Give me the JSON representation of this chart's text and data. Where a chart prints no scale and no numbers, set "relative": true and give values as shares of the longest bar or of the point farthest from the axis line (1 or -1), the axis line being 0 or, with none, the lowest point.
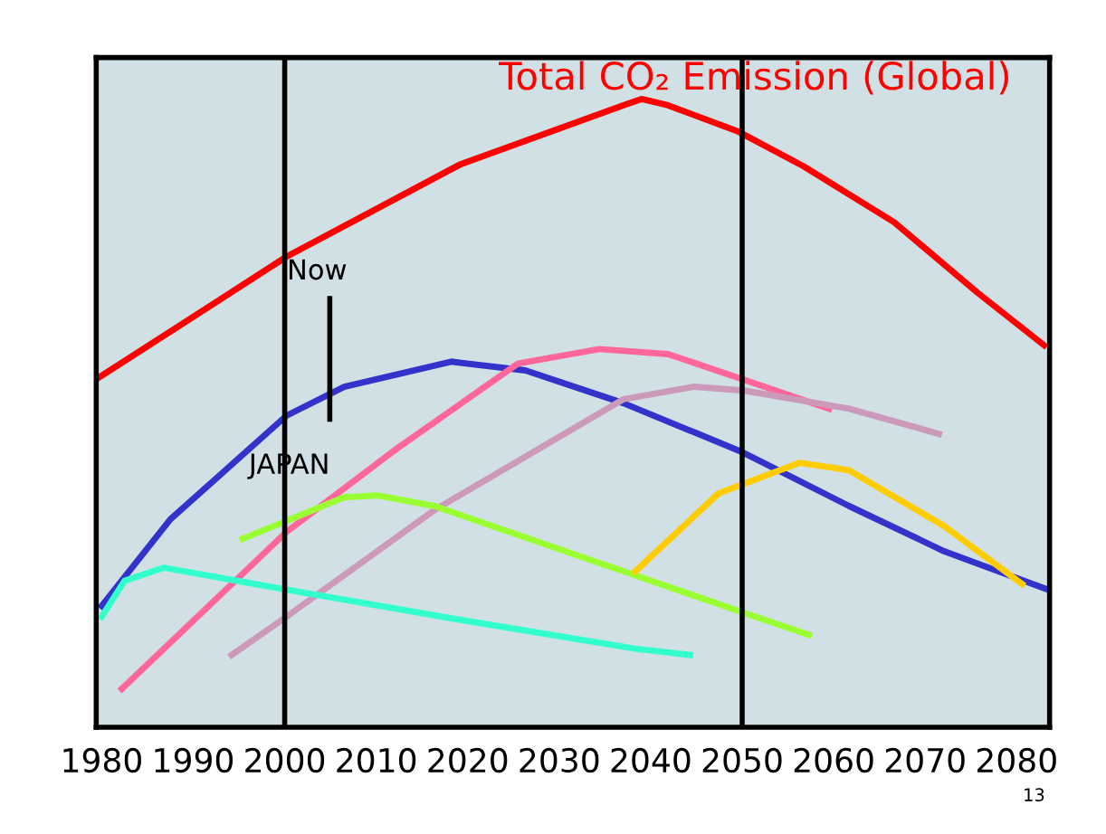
{
  "chart_data": {
    "type": "line",
    "title": "Total CO₂ Emission (Global)",
    "relative": true,
    "xlim": [
      1979.4,
      2083.6
    ],
    "xticks": [
      1980,
      1990,
      2000,
      2010,
      2020,
      2030,
      2040,
      2050,
      2060,
      2070,
      2080
    ],
    "series": [
      {
        "color": "#ff0000",
        "x": [
          1979.6,
          2000.2,
          2019.2,
          2037,
          2039,
          2041.9,
          2049.6,
          2056.7,
          2066.6,
          2075.7,
          2083
        ],
        "values": [
          0.556,
          0.749,
          0.896,
          0.99,
          1.0,
          0.99,
          0.948,
          0.893,
          0.804,
          0.692,
          0.608
        ]
      },
      {
        "color": "#3333cc",
        "x": [
          1980,
          1987.5,
          2000.2,
          2006.5,
          2018.2,
          2026.3,
          2037,
          2050,
          2061.7,
          2072.1,
          2083.4
        ],
        "values": [
          0.193,
          0.331,
          0.496,
          0.542,
          0.582,
          0.568,
          0.516,
          0.438,
          0.352,
          0.28,
          0.219
        ]
      },
      {
        "color": "#ff6699",
        "x": [
          1982.2,
          2000.2,
          2012.3,
          2025.5,
          2034.4,
          2041.9,
          2049.6,
          2059.5
        ],
        "values": [
          0.061,
          0.311,
          0.444,
          0.579,
          0.602,
          0.594,
          0.556,
          0.507
        ]
      },
      {
        "color": "#cc99bb",
        "x": [
          1994.2,
          2000.2,
          2016.4,
          2037,
          2044.7,
          2050.2,
          2061.7,
          2071.5
        ],
        "values": [
          0.115,
          0.176,
          0.346,
          0.522,
          0.542,
          0.536,
          0.507,
          0.467
        ]
      },
      {
        "color": "#99ff33",
        "x": [
          1995.4,
          2006.5,
          2010.1,
          2016.4,
          2038.3,
          2050.2,
          2057.3
        ],
        "values": [
          0.3,
          0.366,
          0.369,
          0.352,
          0.242,
          0.182,
          0.147
        ]
      },
      {
        "color": "#33ffcc",
        "x": [
          1980,
          1982.5,
          1986.8,
          2000.2,
          2019.2,
          2038.3,
          2044.3
        ],
        "values": [
          0.176,
          0.233,
          0.254,
          0.219,
          0.171,
          0.125,
          0.115
        ]
      },
      {
        "color": "#ffcc00",
        "x": [
          2038.3,
          2047.4,
          2056.3,
          2061.7,
          2072.1,
          2080.6
        ],
        "values": [
          0.248,
          0.372,
          0.421,
          0.409,
          0.32,
          0.228
        ]
      }
    ],
    "ref_lines": [
      {
        "axis": "x",
        "value": 2000,
        "color": "#000000"
      },
      {
        "axis": "x",
        "value": 2050,
        "color": "#000000"
      }
    ],
    "annotations": [
      "Now",
      "JAPAN",
      "13"
    ],
    "grid": false,
    "marker": "none",
    "line_style": "solid"
  }
}
